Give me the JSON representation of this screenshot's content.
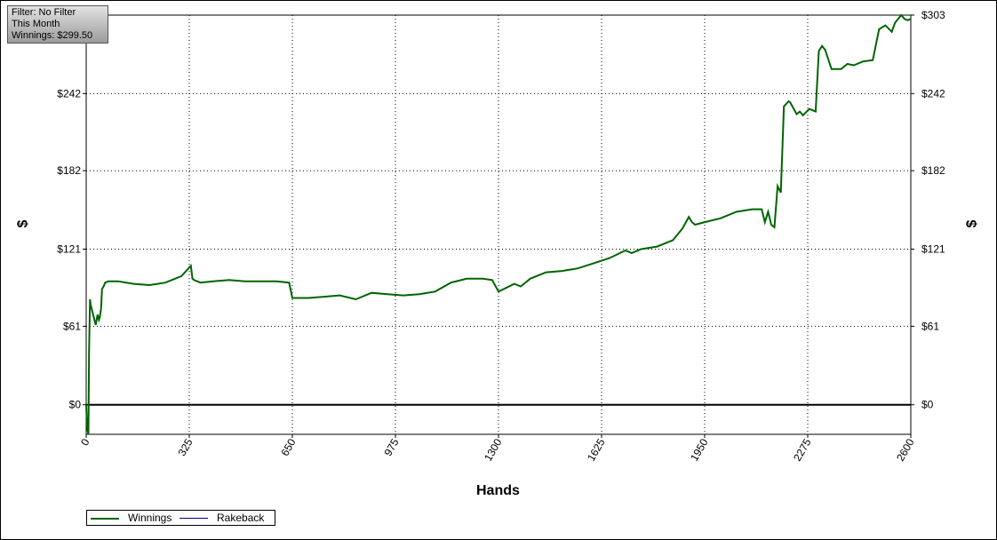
{
  "info": {
    "filter": "Filter: No Filter",
    "period": "This Month",
    "winnings": "Winnings: $299.50"
  },
  "chart_data": {
    "type": "line",
    "xlabel": "Hands",
    "ylabel": "$",
    "xlim": [
      0,
      2600
    ],
    "ylim": [
      -23,
      303
    ],
    "x_ticks": [
      "0",
      "325",
      "650",
      "975",
      "1300",
      "1625",
      "1950",
      "2275",
      "2600"
    ],
    "y_ticks": [
      "$0",
      "$61",
      "$121",
      "$182",
      "$242",
      "$303"
    ],
    "y_tick_values": [
      0,
      61,
      121,
      182,
      242,
      303
    ],
    "grid": true,
    "legend": {
      "placement": "bottom-left",
      "entries": [
        "Winnings",
        "Rakeback"
      ]
    },
    "series": [
      {
        "name": "Winnings",
        "color": "#006400",
        "x": [
          0,
          3,
          7,
          9,
          12,
          14,
          20,
          30,
          36,
          40,
          43,
          47,
          50,
          55,
          60,
          70,
          100,
          150,
          200,
          250,
          300,
          330,
          335,
          340,
          360,
          400,
          450,
          500,
          550,
          600,
          640,
          650,
          700,
          750,
          800,
          850,
          900,
          950,
          1000,
          1050,
          1100,
          1150,
          1200,
          1250,
          1280,
          1300,
          1350,
          1370,
          1380,
          1400,
          1450,
          1500,
          1550,
          1600,
          1650,
          1700,
          1720,
          1750,
          1800,
          1850,
          1880,
          1900,
          1910,
          1920,
          1950,
          2000,
          2050,
          2100,
          2130,
          2140,
          2150,
          2160,
          2170,
          2180,
          2190,
          2200,
          2215,
          2220,
          2240,
          2250,
          2260,
          2280,
          2300,
          2310,
          2320,
          2330,
          2350,
          2380,
          2400,
          2420,
          2450,
          2480,
          2500,
          2520,
          2540,
          2550,
          2560,
          2570,
          2580,
          2590,
          2600
        ],
        "y": [
          0,
          -18,
          -23,
          40,
          82,
          78,
          72,
          62,
          70,
          66,
          68,
          75,
          90,
          92,
          95,
          96,
          96,
          94,
          93,
          95,
          100,
          108,
          98,
          97,
          95,
          96,
          97,
          96,
          96,
          96,
          95,
          83,
          83,
          84,
          85,
          82,
          87,
          86,
          85,
          86,
          88,
          95,
          98,
          98,
          97,
          88,
          94,
          92,
          94,
          98,
          103,
          104,
          106,
          110,
          114,
          120,
          118,
          121,
          123,
          128,
          137,
          146,
          142,
          140,
          142,
          145,
          150,
          152,
          152,
          142,
          150,
          140,
          138,
          170,
          165,
          232,
          236,
          235,
          226,
          228,
          225,
          230,
          228,
          275,
          279,
          276,
          261,
          261,
          265,
          264,
          267,
          268,
          292,
          295,
          290,
          297,
          300,
          303,
          300,
          299,
          300
        ]
      },
      {
        "name": "Rakeback",
        "color": "#000080",
        "x": [],
        "y": []
      }
    ]
  }
}
